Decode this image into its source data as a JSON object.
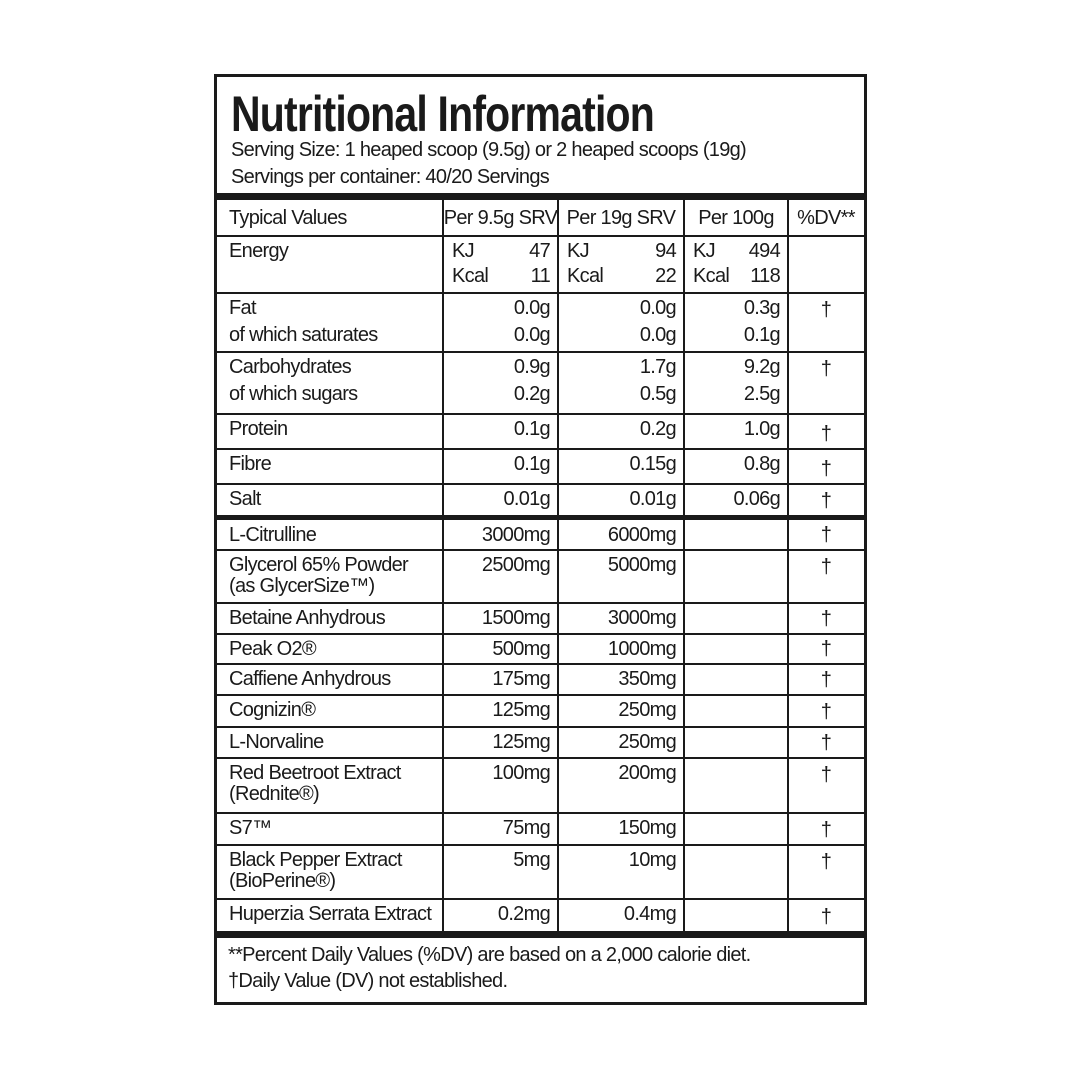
{
  "header": {
    "title": "Nutritional Information",
    "lines": [
      "Serving Size: 1 heaped scoop (9.5g) or 2 heaped scoops (19g)",
      "Servings per container: 40/20 Servings"
    ]
  },
  "table": {
    "columns": [
      "Typical Values",
      "Per 9.5g SRV",
      "Per 19g SRV",
      "Per 100g",
      "%DV**"
    ],
    "rows": [
      {
        "label": [
          "Energy"
        ],
        "cells": [
          [
            [
              "KJ",
              "47"
            ],
            [
              "Kcal",
              "11"
            ]
          ],
          [
            [
              "KJ",
              "94"
            ],
            [
              "Kcal",
              "22"
            ]
          ],
          [
            [
              "KJ",
              "494"
            ],
            [
              "Kcal",
              "118"
            ]
          ]
        ]
      },
      {
        "label": [
          "Fat",
          "of which saturates"
        ],
        "cells": [
          [
            "0.0g",
            "0.0g"
          ],
          [
            "0.0g",
            "0.0g"
          ],
          [
            "0.3g",
            "0.1g"
          ]
        ],
        "dv": "†"
      },
      {
        "label": [
          "Carbohydrates",
          "of which sugars"
        ],
        "cells": [
          [
            "0.9g",
            "0.2g"
          ],
          [
            "1.7g",
            "0.5g"
          ],
          [
            "9.2g",
            "2.5g"
          ]
        ],
        "dv": "†"
      },
      {
        "label": [
          "Protein"
        ],
        "cells": [
          [
            "0.1g"
          ],
          [
            "0.2g"
          ],
          [
            "1.0g"
          ]
        ],
        "dv": "†"
      },
      {
        "label": [
          "Fibre"
        ],
        "cells": [
          [
            "0.1g"
          ],
          [
            "0.15g"
          ],
          [
            "0.8g"
          ]
        ],
        "dv": "†"
      },
      {
        "label": [
          "Salt"
        ],
        "cells": [
          [
            "0.01g"
          ],
          [
            "0.01g"
          ],
          [
            "0.06g"
          ]
        ],
        "dv": "†"
      },
      {
        "label": [
          "L-Citrulline"
        ],
        "cells": [
          [
            "3000mg"
          ],
          [
            "6000mg"
          ]
        ],
        "dv": "†"
      },
      {
        "label": [
          "Glycerol 65% Powder",
          "(as GlycerSize™)"
        ],
        "cells": [
          [
            "2500mg"
          ],
          [
            "5000mg"
          ]
        ],
        "dv": "†"
      },
      {
        "label": [
          "Betaine Anhydrous"
        ],
        "cells": [
          [
            "1500mg"
          ],
          [
            "3000mg"
          ]
        ],
        "dv": "†"
      },
      {
        "label": [
          "Peak O2®"
        ],
        "cells": [
          [
            "500mg"
          ],
          [
            "1000mg"
          ]
        ],
        "dv": "†"
      },
      {
        "label": [
          "Caffiene Anhydrous"
        ],
        "cells": [
          [
            "175mg"
          ],
          [
            "350mg"
          ]
        ],
        "dv": "†"
      },
      {
        "label": [
          "Cognizin®"
        ],
        "cells": [
          [
            "125mg"
          ],
          [
            "250mg"
          ]
        ],
        "dv": "†"
      },
      {
        "label": [
          "L-Norvaline"
        ],
        "cells": [
          [
            "125mg"
          ],
          [
            "250mg"
          ]
        ],
        "dv": "†"
      },
      {
        "label": [
          "Red Beetroot Extract",
          "(Rednite®)"
        ],
        "cells": [
          [
            "100mg"
          ],
          [
            "200mg"
          ]
        ],
        "dv": "†"
      },
      {
        "label": [
          "S7™"
        ],
        "cells": [
          [
            "75mg"
          ],
          [
            "150mg"
          ]
        ],
        "dv": "†"
      },
      {
        "label": [
          "Black Pepper Extract",
          "(BioPerine®)"
        ],
        "cells": [
          [
            "5mg"
          ],
          [
            "10mg"
          ]
        ],
        "dv": "†"
      },
      {
        "label": [
          "Huperzia Serrata Extract"
        ],
        "cells": [
          [
            "0.2mg"
          ],
          [
            "0.4mg"
          ]
        ],
        "dv": "†"
      }
    ]
  },
  "footer": {
    "lines": [
      "**Percent Daily Values (%DV) are based on a 2,000 calorie diet.",
      "†Daily Value (DV) not established."
    ]
  }
}
